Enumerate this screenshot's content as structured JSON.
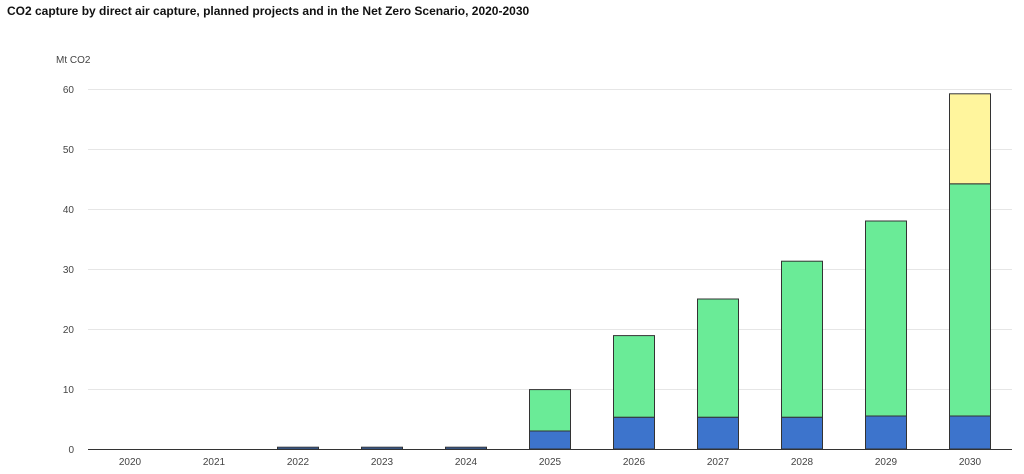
{
  "chart_data": {
    "type": "bar",
    "stacked": true,
    "title": "CO2 capture by direct air capture, planned projects and in the Net Zero Scenario, 2020-2030",
    "ylabel": "Mt CO2",
    "xlabel": "",
    "ylim": [
      0,
      60
    ],
    "yticks": [
      0,
      10,
      20,
      30,
      40,
      50,
      60
    ],
    "grid": true,
    "legend": "none",
    "categories": [
      "2020",
      "2021",
      "2022",
      "2023",
      "2024",
      "2025",
      "2026",
      "2027",
      "2028",
      "2029",
      "2030"
    ],
    "series": [
      {
        "color": "#3d74cc",
        "values": [
          0.0,
          0.0,
          0.3,
          0.3,
          0.3,
          3.0,
          5.3,
          5.3,
          5.3,
          5.5,
          5.5
        ]
      },
      {
        "color": "#6aeb97",
        "values": [
          0.0,
          0.0,
          0.0,
          0.0,
          0.0,
          6.9,
          13.6,
          19.7,
          26.0,
          32.5,
          38.7
        ]
      },
      {
        "color": "#fff59d",
        "values": [
          0.0,
          0.0,
          0.0,
          0.0,
          0.0,
          0.0,
          0.0,
          0.0,
          0.0,
          0.0,
          15.0
        ]
      }
    ]
  }
}
